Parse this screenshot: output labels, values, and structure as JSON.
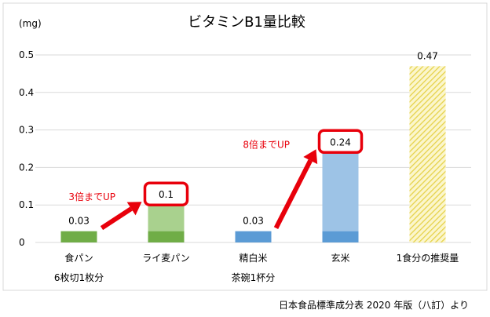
{
  "chart_data": {
    "type": "bar",
    "title": "ビタミンB1量比較",
    "unit_label": "(mg)",
    "ylim": [
      0,
      0.5
    ],
    "yticks": [
      "0",
      "0.1",
      "0.2",
      "0.3",
      "0.4",
      "0.5"
    ],
    "grid": true,
    "categories": [
      {
        "label": "食パン",
        "sublabel": "6枚切1枚分"
      },
      {
        "label": "ライ麦パン",
        "sublabel": ""
      },
      {
        "label": "精白米",
        "sublabel": "茶碗1杯分"
      },
      {
        "label": "玄米",
        "sublabel": ""
      },
      {
        "label": "1食分の推奨量",
        "sublabel": ""
      }
    ],
    "bars": [
      {
        "total": 0.03,
        "base": 0.03,
        "label": "0.03",
        "highlight": false,
        "hatched": false,
        "color": "#70ad47",
        "extra_color": "#a9d18e"
      },
      {
        "total": 0.1,
        "base": 0.03,
        "label": "0.1",
        "highlight": true,
        "hatched": false,
        "color": "#70ad47",
        "extra_color": "#a9d18e"
      },
      {
        "total": 0.03,
        "base": 0.03,
        "label": "0.03",
        "highlight": false,
        "hatched": false,
        "color": "#5b9bd5",
        "extra_color": "#9dc3e6"
      },
      {
        "total": 0.24,
        "base": 0.03,
        "label": "0.24",
        "highlight": true,
        "hatched": false,
        "color": "#5b9bd5",
        "extra_color": "#9dc3e6"
      },
      {
        "total": 0.47,
        "base": 0.47,
        "label": "0.47",
        "highlight": false,
        "hatched": true,
        "color": "#e6d24a",
        "extra_color": "#e6d24a"
      }
    ],
    "annotations": [
      {
        "text": "3倍までUP",
        "from_category": 0,
        "to_category": 1
      },
      {
        "text": "8倍までUP",
        "from_category": 2,
        "to_category": 3
      }
    ],
    "source": "日本食品標準成分表 2020 年版（八訂）より",
    "colors": {
      "accent_red": "#e8000b",
      "grid": "#d9d9d9",
      "axis_text": "#000000"
    }
  }
}
